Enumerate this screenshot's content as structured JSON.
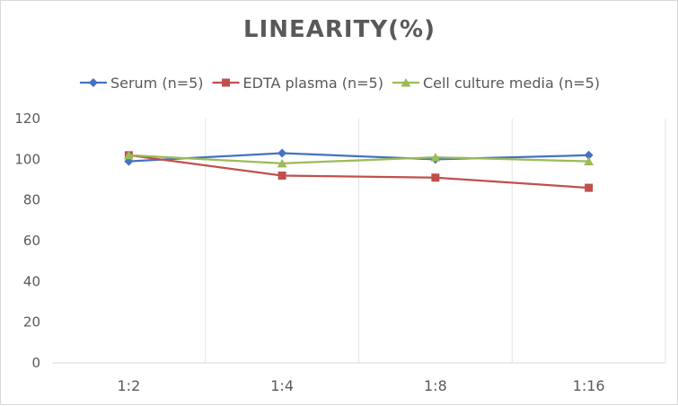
{
  "chart_data": {
    "type": "line",
    "title": "LINEARITY(%)",
    "categories": [
      "1:2",
      "1:4",
      "1:8",
      "1:16"
    ],
    "ylim": [
      0,
      120
    ],
    "yticks": [
      0,
      20,
      40,
      60,
      80,
      100,
      120
    ],
    "grid": "vertical",
    "legend_position": "top",
    "series": [
      {
        "name": "Serum (n=5)",
        "values": [
          99,
          103,
          100,
          102
        ],
        "color": "#4472c4",
        "marker": "diamond"
      },
      {
        "name": "EDTA plasma (n=5)",
        "values": [
          102,
          92,
          91,
          86
        ],
        "color": "#c0504d",
        "marker": "square"
      },
      {
        "name": "Cell culture media (n=5)",
        "values": [
          102,
          98,
          101,
          99
        ],
        "color": "#9bbb59",
        "marker": "triangle"
      }
    ]
  }
}
